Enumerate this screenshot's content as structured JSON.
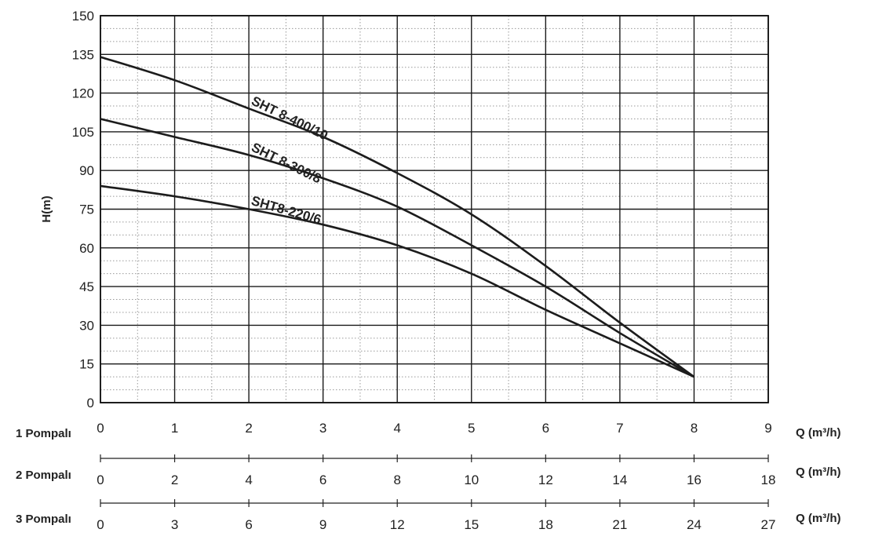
{
  "chart_data": {
    "type": "line",
    "title": "",
    "ylabel": "H(m)",
    "xlabel": "Q (m³/h)",
    "ylim": [
      0,
      150
    ],
    "xlim": [
      0,
      9
    ],
    "grid": true,
    "yticks": [
      "0",
      "15",
      "30",
      "45",
      "60",
      "75",
      "90",
      "105",
      "120",
      "135",
      "150"
    ],
    "x_axes": [
      {
        "label": "1 Pompalı",
        "unit": "Q (m³/h)",
        "ticks": [
          "0",
          "1",
          "2",
          "3",
          "4",
          "5",
          "6",
          "7",
          "8",
          "9"
        ]
      },
      {
        "label": "2 Pompalı",
        "unit": "Q (m³/h)",
        "ticks": [
          "0",
          "2",
          "4",
          "6",
          "8",
          "10",
          "12",
          "14",
          "16",
          "18"
        ]
      },
      {
        "label": "3 Pompalı",
        "unit": "Q (m³/h)",
        "ticks": [
          "0",
          "3",
          "6",
          "9",
          "12",
          "15",
          "18",
          "21",
          "24",
          "27"
        ]
      }
    ],
    "series": [
      {
        "name": "SHT 8-400/10",
        "x": [
          0,
          1,
          2,
          3,
          4,
          5,
          6,
          7,
          8
        ],
        "y": [
          134,
          125,
          114,
          103,
          89,
          73,
          53,
          31,
          10
        ]
      },
      {
        "name": "SHT 8-300/8",
        "x": [
          0,
          1,
          2,
          3,
          4,
          5,
          6,
          7,
          8
        ],
        "y": [
          110,
          103,
          96,
          87,
          76,
          61,
          45,
          27,
          10
        ]
      },
      {
        "name": "SHT8-220/6",
        "x": [
          0,
          1,
          2,
          3,
          4,
          5,
          6,
          7,
          8
        ],
        "y": [
          84,
          80,
          75,
          69,
          61,
          50,
          36,
          23,
          10
        ]
      }
    ]
  }
}
